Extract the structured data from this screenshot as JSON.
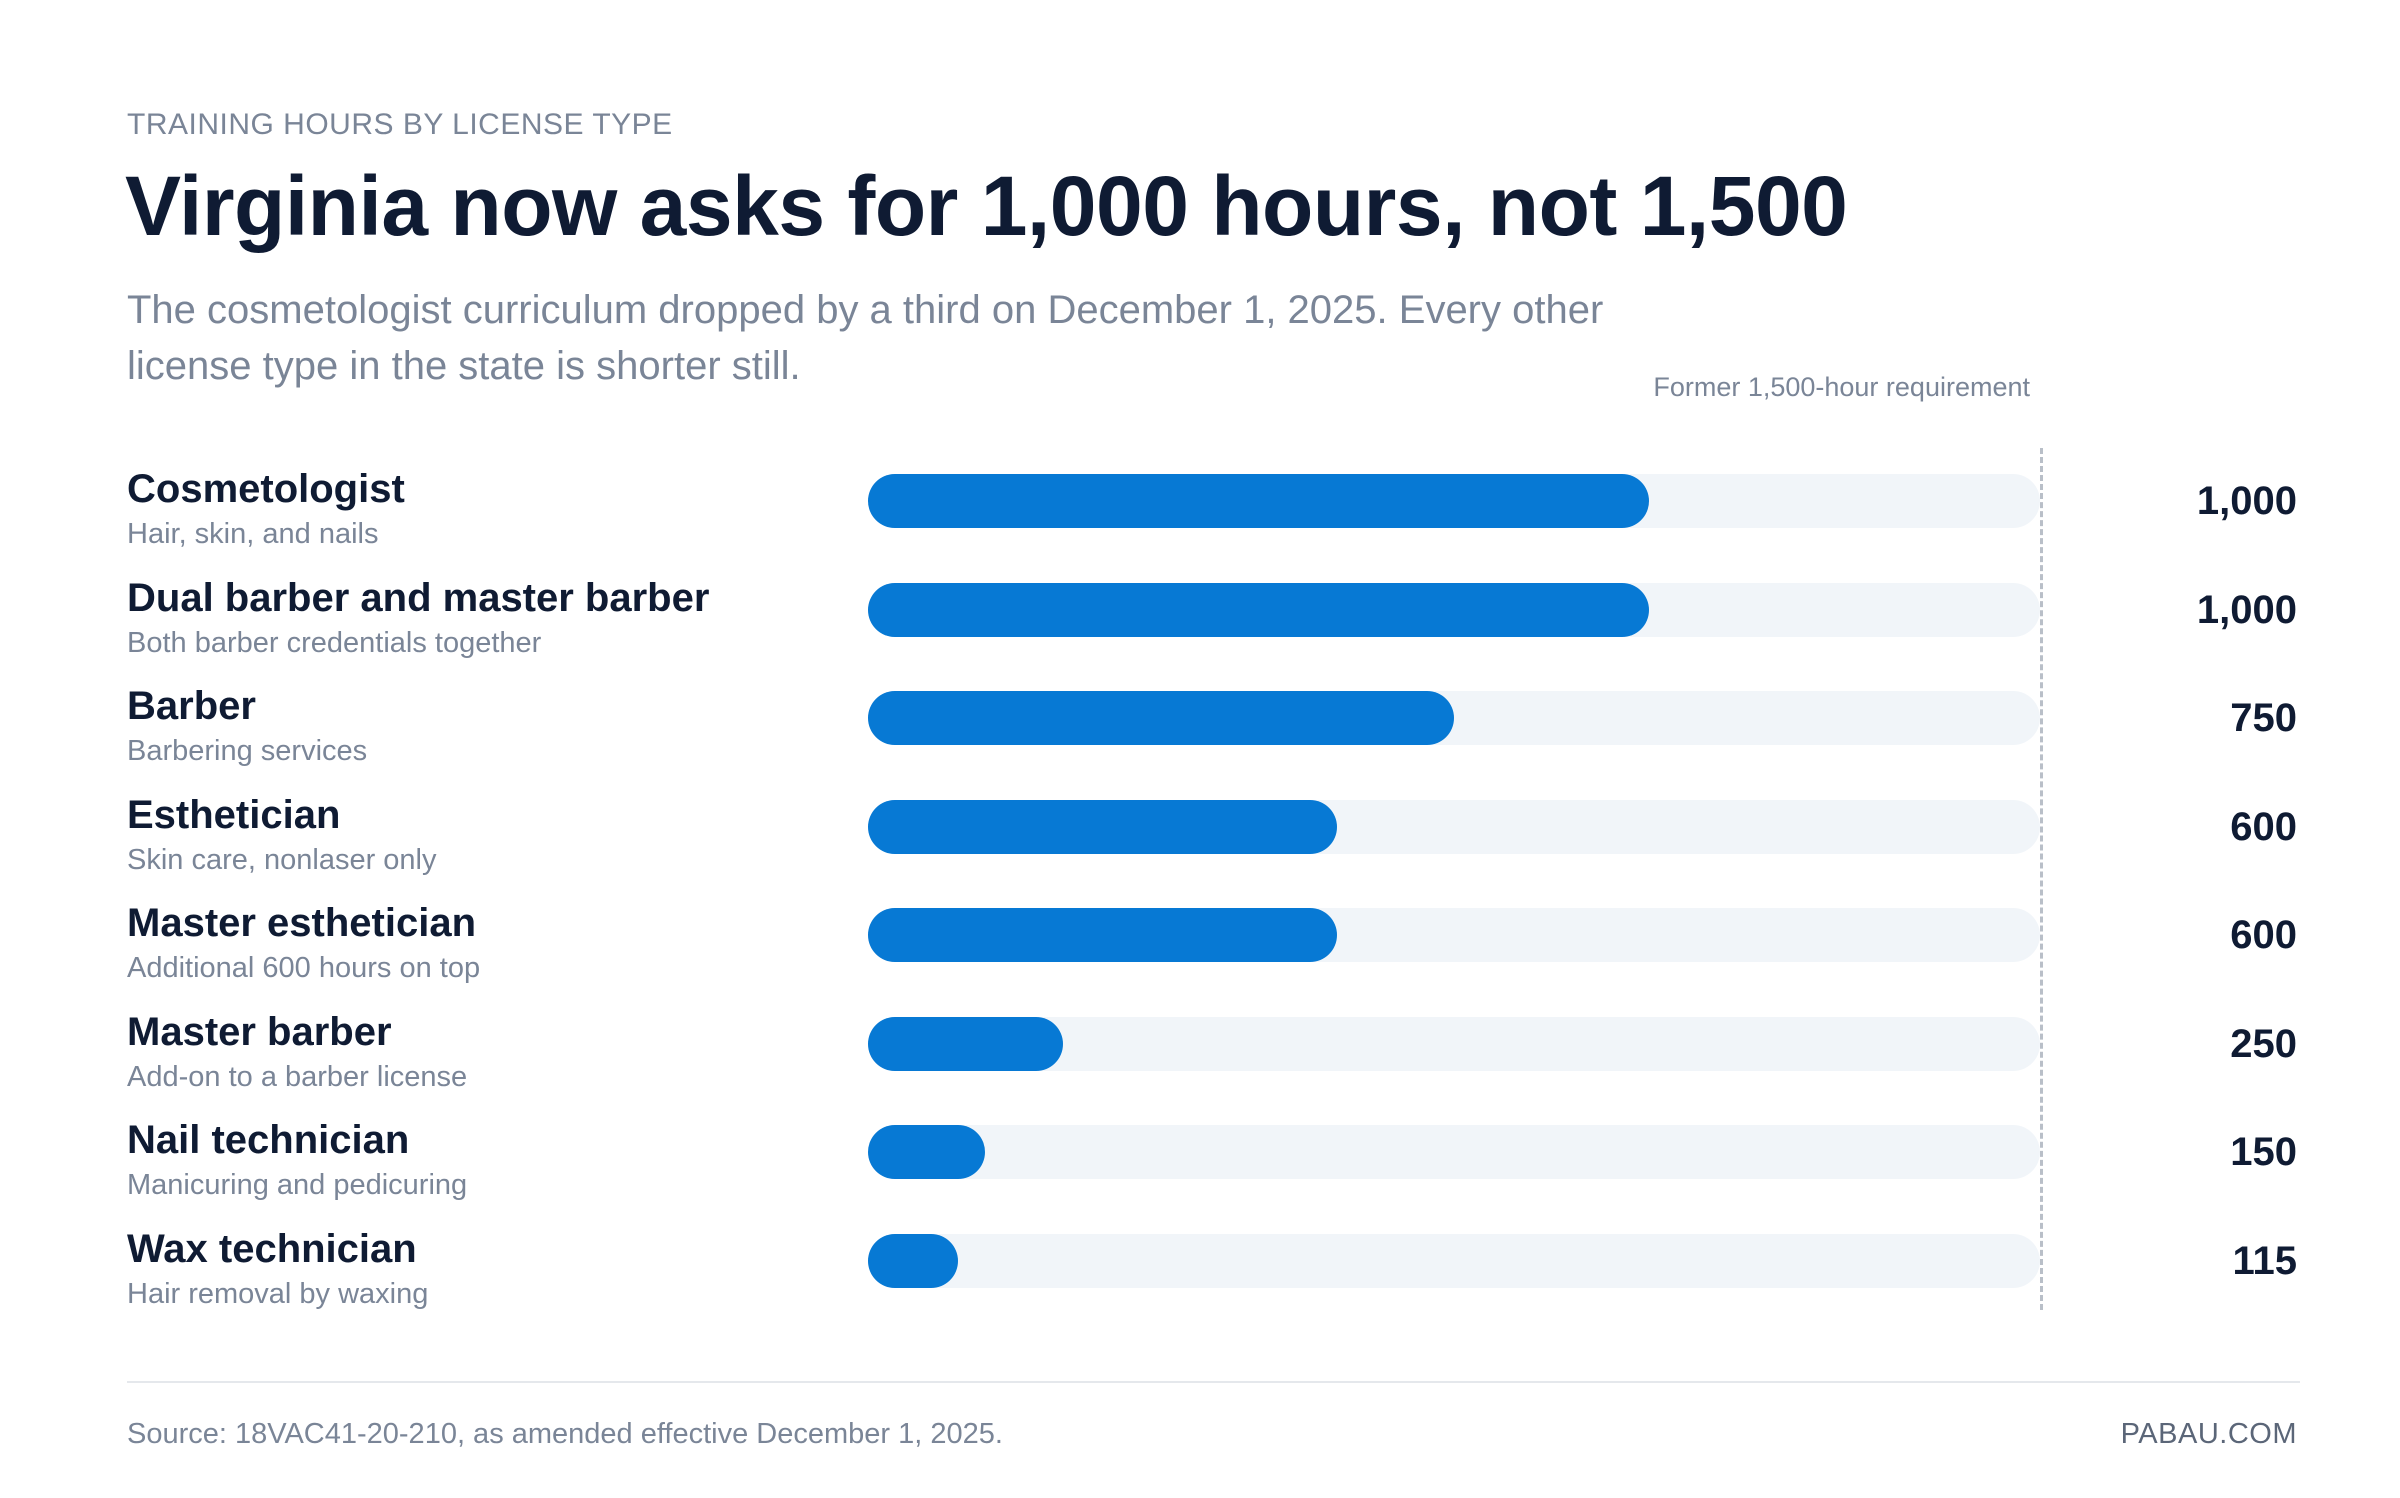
{
  "eyebrow": "TRAINING HOURS BY LICENSE TYPE",
  "title": "Virginia now asks for 1,000 hours, not 1,500",
  "subtitle": "The cosmetologist curriculum dropped by a third on December 1, 2025. Every other license type in the state is shorter still.",
  "reference": {
    "label": "Former 1,500-hour requirement",
    "value": 1500
  },
  "colors": {
    "bar": "#0779d4",
    "track": "#f1f5f9",
    "text": "#0f1b33",
    "muted": "#7a8597"
  },
  "chart_data": {
    "type": "bar",
    "orientation": "horizontal",
    "xlim": [
      0,
      1500
    ],
    "rows": [
      {
        "label": "Cosmetologist",
        "sub": "Hair, skin, and nails",
        "value": 1000,
        "value_label": "1,000"
      },
      {
        "label": "Dual barber and master barber",
        "sub": "Both barber credentials together",
        "value": 1000,
        "value_label": "1,000"
      },
      {
        "label": "Barber",
        "sub": "Barbering services",
        "value": 750,
        "value_label": "750"
      },
      {
        "label": "Esthetician",
        "sub": "Skin care, nonlaser only",
        "value": 600,
        "value_label": "600"
      },
      {
        "label": "Master esthetician",
        "sub": "Additional 600 hours on top",
        "value": 600,
        "value_label": "600"
      },
      {
        "label": "Master barber",
        "sub": "Add-on to a barber license",
        "value": 250,
        "value_label": "250"
      },
      {
        "label": "Nail technician",
        "sub": "Manicuring and pedicuring",
        "value": 150,
        "value_label": "150"
      },
      {
        "label": "Wax technician",
        "sub": "Hair removal by waxing",
        "value": 115,
        "value_label": "115"
      }
    ]
  },
  "footer": {
    "source": "Source: 18VAC41-20-210, as amended effective December 1, 2025.",
    "brand": "PABAU.COM"
  }
}
